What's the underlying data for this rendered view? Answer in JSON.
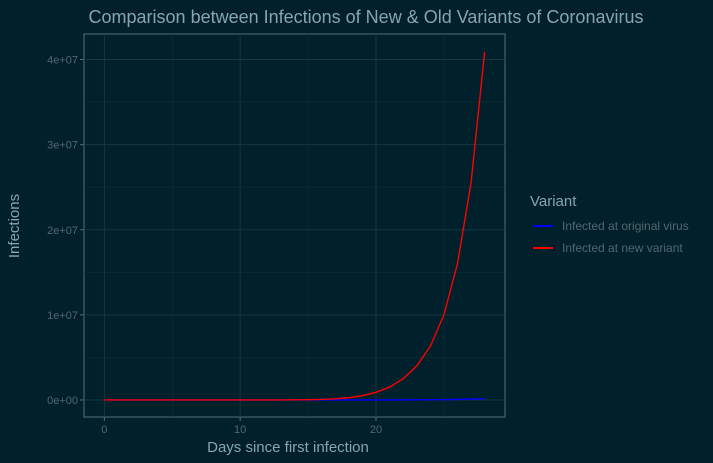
{
  "chart_data": {
    "type": "line",
    "title": "Comparison between Infections of New & Old Variants of Coronavirus",
    "xlabel": "Days since first infection",
    "ylabel": "Infections",
    "xlim": [
      -1.5,
      29.5
    ],
    "ylim": [
      -2000000,
      43000000
    ],
    "x_ticks": [
      0,
      10,
      20
    ],
    "x_tick_labels": [
      "0",
      "10",
      "20"
    ],
    "y_ticks": [
      0,
      10000000,
      20000000,
      30000000,
      40000000
    ],
    "y_tick_labels": [
      "0e+00",
      "1e+07",
      "2e+07",
      "3e+07",
      "4e+07"
    ],
    "grid": true,
    "legend": {
      "title": "Variant",
      "position": "right"
    },
    "x": [
      0,
      1,
      2,
      3,
      4,
      5,
      6,
      7,
      8,
      9,
      10,
      11,
      12,
      13,
      14,
      15,
      16,
      17,
      18,
      19,
      20,
      21,
      22,
      23,
      24,
      25,
      26,
      27,
      28
    ],
    "series": [
      {
        "name": "Infected at original virus",
        "color": "#0000ff",
        "values": [
          1,
          2,
          3,
          5,
          8,
          13,
          20,
          30,
          45,
          70,
          100,
          150,
          230,
          350,
          520,
          780,
          1200,
          1800,
          2700,
          4000,
          6000,
          9000,
          13000,
          20000,
          30000,
          45000,
          67000,
          100000,
          150000
        ]
      },
      {
        "name": "Infected at new variant",
        "color": "#ff0000",
        "values": [
          1,
          2,
          4,
          8,
          16,
          32,
          64,
          128,
          256,
          512,
          1024,
          2048,
          4096,
          8192,
          16384,
          32768,
          65536,
          131072,
          262144,
          500000,
          900000,
          1500000,
          2500000,
          4000000,
          6300000,
          10000000,
          16000000,
          25500000,
          40900000
        ]
      }
    ]
  }
}
